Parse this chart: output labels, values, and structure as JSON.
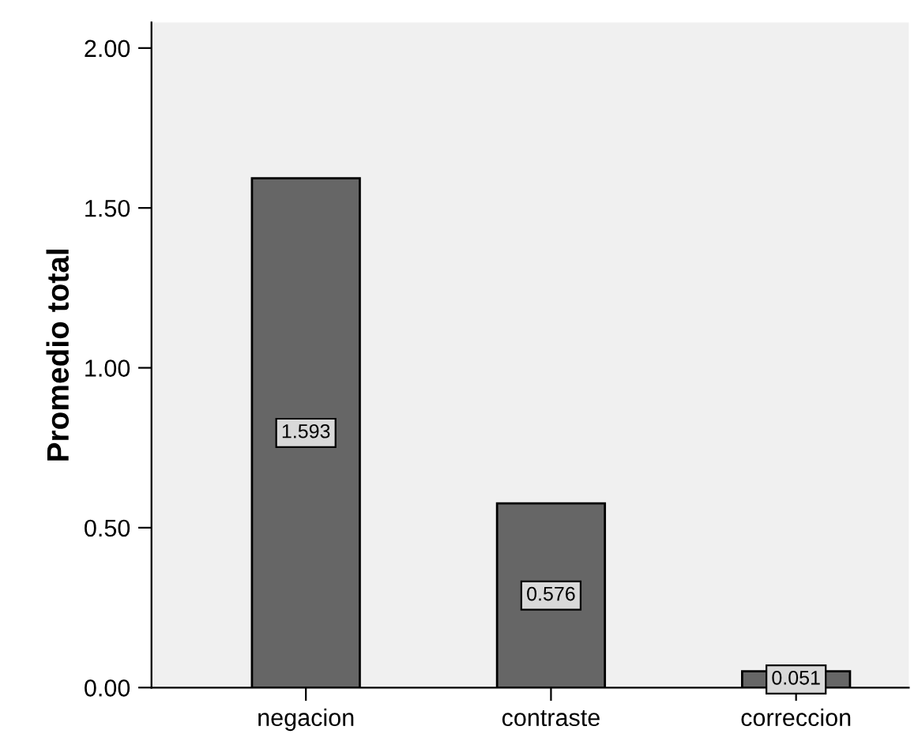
{
  "chart_data": {
    "type": "bar",
    "ylabel": "Promedio total",
    "categories": [
      "negacion",
      "contraste",
      "correccion"
    ],
    "values": [
      1.593,
      0.576,
      0.051
    ],
    "color": "#666666",
    "data_labels": true,
    "ylim": [
      0,
      2.08
    ],
    "yticks": [
      {
        "value": 0,
        "label": "0.00"
      },
      {
        "value": 0.5,
        "label": "0.50"
      },
      {
        "value": 1.0,
        "label": "1.00"
      },
      {
        "value": 1.5,
        "label": "1.50"
      },
      {
        "value": 2.0,
        "label": "2.00"
      }
    ],
    "grid": false
  }
}
